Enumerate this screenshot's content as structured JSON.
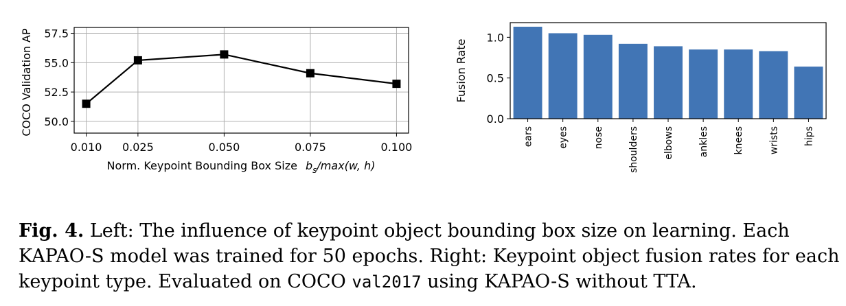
{
  "chart_data": [
    {
      "type": "line",
      "xlabel_prefix": "Norm. Keypoint Bounding Box Size",
      "xlabel_math": "b",
      "xlabel_sub": "s",
      "xlabel_suffix": "/max(w, h)",
      "ylabel": "COCO Validation AP",
      "x": [
        0.01,
        0.025,
        0.05,
        0.075,
        0.1
      ],
      "y": [
        51.5,
        55.2,
        55.7,
        54.1,
        53.2
      ],
      "xticks": [
        "0.010",
        "0.025",
        "0.050",
        "0.075",
        "0.100"
      ],
      "yticks": [
        "50.0",
        "52.5",
        "55.0",
        "57.5"
      ],
      "ylim": [
        49.0,
        58.0
      ],
      "grid": true,
      "marker": "square",
      "color": "#000000"
    },
    {
      "type": "bar",
      "ylabel": "Fusion Rate",
      "categories": [
        "ears",
        "eyes",
        "nose",
        "shoulders",
        "elbows",
        "ankles",
        "knees",
        "wrists",
        "hips"
      ],
      "values": [
        1.13,
        1.05,
        1.03,
        0.92,
        0.89,
        0.85,
        0.85,
        0.83,
        0.64
      ],
      "yticks": [
        "0.0",
        "0.5",
        "1.0"
      ],
      "ylim": [
        0.0,
        1.18
      ],
      "grid": false,
      "color": "#4175b5"
    }
  ],
  "caption": {
    "label": "Fig. 4.",
    "text_before_code": " Left: The influence of keypoint object bounding box size on learning. Each KAPAO-S model was trained for 50 epochs. Right: Keypoint object fusion rates for each keypoint type. Evaluated on COCO ",
    "code": "val2017",
    "text_after_code": " using KAPAO-S without TTA."
  }
}
